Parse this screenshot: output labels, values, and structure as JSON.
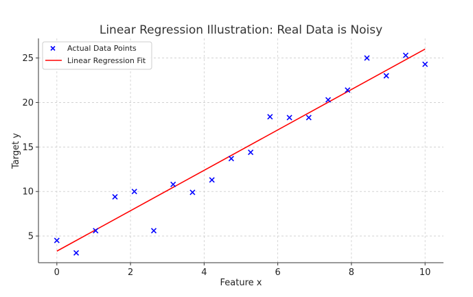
{
  "chart_data": {
    "type": "scatter",
    "title": "Linear Regression Illustration: Real Data is Noisy",
    "xlabel": "Feature x",
    "ylabel": "Target y",
    "xlim": [
      -0.5,
      10.5
    ],
    "ylim": [
      2.0,
      27.2
    ],
    "x_ticks": [
      0,
      2,
      4,
      6,
      8,
      10
    ],
    "y_ticks": [
      5,
      10,
      15,
      20,
      25
    ],
    "grid": true,
    "legend_position": "top-left",
    "colors": {
      "points": "#0000ff",
      "fit": "#ff0000",
      "grid": "#cccccc",
      "axis": "#333333"
    },
    "series": [
      {
        "name": "Actual Data Points",
        "kind": "scatter",
        "marker": "x",
        "x": [
          0.0,
          0.526,
          1.053,
          1.579,
          2.105,
          2.632,
          3.158,
          3.684,
          4.211,
          4.737,
          5.263,
          5.789,
          6.316,
          6.842,
          7.368,
          7.895,
          8.421,
          8.947,
          9.474,
          10.0
        ],
        "y": [
          4.5,
          3.1,
          5.6,
          9.4,
          10.0,
          5.6,
          10.8,
          9.9,
          11.3,
          13.7,
          14.4,
          18.4,
          18.3,
          18.3,
          20.3,
          21.4,
          25.0,
          23.0,
          25.3,
          24.3
        ]
      },
      {
        "name": "Linear Regression Fit",
        "kind": "line",
        "x": [
          0,
          10
        ],
        "y": [
          3.3,
          26.0
        ]
      }
    ]
  }
}
